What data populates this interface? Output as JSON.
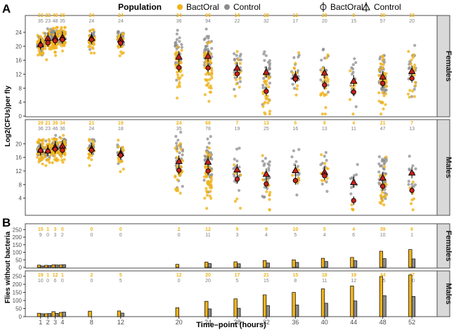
{
  "panel_labels": [
    "A",
    "B"
  ],
  "legend": {
    "title": "Population",
    "items": [
      {
        "label": "BactOral",
        "color": "#f0b31c"
      },
      {
        "label": "Control",
        "color": "#8c8c8c"
      }
    ],
    "shape_items": [
      {
        "label": "BactOral",
        "shape": "circle"
      },
      {
        "label": "Control",
        "shape": "triangle"
      }
    ]
  },
  "colors": {
    "bactoral": "#f0b31c",
    "control": "#8c8c8c",
    "mean_marker": "#c8211c",
    "strip_bg": "#d9d9d9"
  },
  "chart_data": [
    {
      "type": "scatter",
      "panel": "A",
      "facet": "Females",
      "ylabel": "Log2(CFUs)per fly",
      "ylim": [
        0,
        26
      ],
      "yticks": [
        0,
        4,
        8,
        12,
        16,
        20,
        24
      ],
      "timepoints": [
        1,
        2,
        3,
        4,
        8,
        12,
        20,
        24,
        28,
        32,
        36,
        40,
        44,
        48,
        52
      ],
      "n_bactoral": [
        "33",
        "22",
        "49",
        "36",
        "24",
        "24",
        "34",
        "90",
        "14",
        "28",
        "13",
        "20",
        "8",
        "39",
        "18"
      ],
      "n_control": [
        "35",
        "23",
        "48",
        "35",
        "24",
        "24",
        "36",
        "94",
        "22",
        "32",
        "17",
        "20",
        "15",
        "57",
        "20"
      ],
      "mean_bactoral": [
        20.3,
        21.0,
        21.6,
        21.9,
        21.9,
        20.9,
        13.9,
        13.8,
        12.1,
        7.1,
        10.6,
        8.9,
        6.9,
        9.4,
        10.8
      ],
      "mean_control": [
        20.6,
        22.3,
        22.4,
        22.6,
        22.4,
        21.9,
        17.0,
        17.2,
        13.8,
        12.6,
        11.4,
        12.4,
        10.1,
        11.3,
        12.9
      ]
    },
    {
      "type": "scatter",
      "panel": "A",
      "facet": "Males",
      "ylabel": "Log2(CFUs)per fly",
      "ylim": [
        0,
        24
      ],
      "yticks": [
        4,
        8,
        12,
        16,
        20
      ],
      "timepoints": [
        1,
        2,
        3,
        4,
        8,
        12,
        20,
        24,
        28,
        32,
        36,
        40,
        44,
        48,
        52
      ],
      "n_bactoral": [
        "29",
        "21",
        "39",
        "34",
        "21",
        "19",
        "24",
        "68",
        "7",
        "13",
        "6",
        "8",
        "4",
        "21",
        "7"
      ],
      "n_control": [
        "36",
        "23",
        "46",
        "36",
        "24",
        "18",
        "35",
        "78",
        "19",
        "25",
        "16",
        "13",
        "11",
        "47",
        "13"
      ],
      "mean_bactoral": [
        18.0,
        17.8,
        18.4,
        18.1,
        18.1,
        16.6,
        12.2,
        12.0,
        9.6,
        8.2,
        9.2,
        10.6,
        3.3,
        7.5,
        6.3
      ],
      "mean_control": [
        18.2,
        18.0,
        19.1,
        19.4,
        18.6,
        17.2,
        14.9,
        14.7,
        12.4,
        11.1,
        12.2,
        11.7,
        8.7,
        10.0,
        11.5
      ]
    },
    {
      "type": "bar",
      "panel": "B",
      "facet": "Females",
      "ylabel": "Flies without bacteria",
      "ylim": [
        0,
        270
      ],
      "yticks": [
        0,
        50,
        100,
        150,
        200,
        250
      ],
      "timepoints": [
        1,
        2,
        3,
        4,
        8,
        12,
        20,
        24,
        28,
        32,
        36,
        40,
        44,
        48,
        52
      ],
      "n_bactoral": [
        "15",
        "1",
        "3",
        "0",
        "0",
        "0",
        "2",
        "12",
        "9",
        "9",
        "10",
        "5",
        "4",
        "39",
        "6"
      ],
      "n_control": [
        "9",
        "0",
        "3",
        "2",
        "0",
        "0",
        "0",
        "11",
        "3",
        "4",
        "5",
        "4",
        "6",
        "10",
        "1"
      ],
      "values_bactoral": [
        15,
        14,
        17,
        16,
        0,
        0,
        20,
        35,
        37,
        45,
        50,
        60,
        66,
        107,
        118
      ],
      "values_control": [
        10,
        13,
        16,
        18,
        0,
        0,
        0,
        25,
        24,
        29,
        33,
        39,
        44,
        58,
        56
      ]
    },
    {
      "type": "bar",
      "panel": "B",
      "facet": "Males",
      "ylabel": "Flies without bacteria",
      "ylim": [
        0,
        270
      ],
      "yticks": [
        0,
        50,
        100,
        150,
        200,
        250
      ],
      "timepoints": [
        1,
        2,
        3,
        4,
        8,
        12,
        20,
        24,
        28,
        32,
        36,
        40,
        44,
        48,
        52
      ],
      "n_bactoral": [
        "19",
        "1",
        "12",
        "1",
        "2",
        "5",
        "12",
        "20",
        "17",
        "21",
        "15",
        "18",
        "19",
        "44",
        "47"
      ],
      "n_control": [
        "10",
        "0",
        "6",
        "0",
        "0",
        "5",
        "0",
        "20",
        "5",
        "15",
        "8",
        "11",
        "12",
        "35",
        "10"
      ],
      "values_bactoral": [
        21,
        18,
        31,
        26,
        34,
        35,
        55,
        95,
        110,
        135,
        150,
        172,
        190,
        248,
        258
      ],
      "values_control": [
        18,
        19,
        20,
        28,
        0,
        22,
        0,
        48,
        52,
        68,
        72,
        83,
        97,
        130,
        125
      ]
    }
  ],
  "x_axis": {
    "title": "Time–point (hours)",
    "ticks": [
      "1",
      "2",
      "3",
      "4",
      "8",
      "12",
      "20",
      "24",
      "28",
      "32",
      "36",
      "40",
      "44",
      "48",
      "52"
    ]
  }
}
